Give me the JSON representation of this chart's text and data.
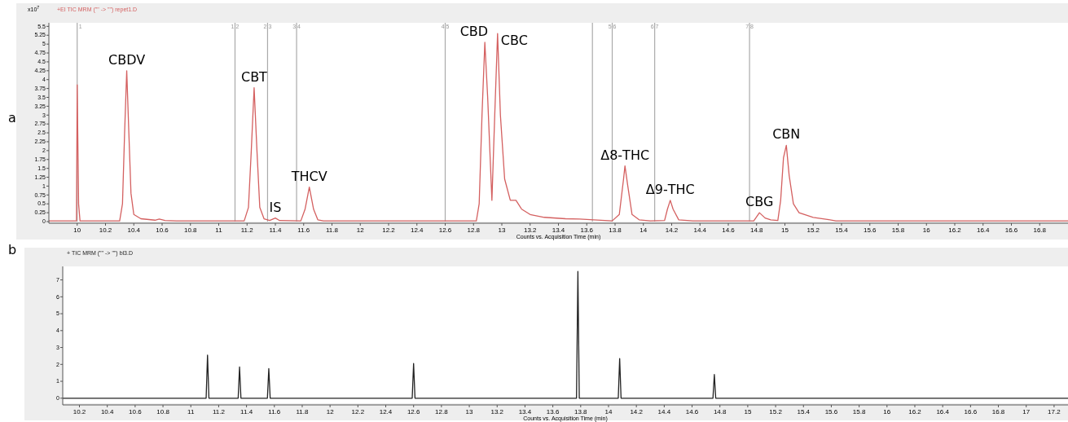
{
  "chart_data": [
    {
      "type": "line",
      "title": "+EI TIC MRM (\"\" -> \"\") repet1.D",
      "ylabel": "x10$^{7}$",
      "xlabel": "Counts vs. Acquisition Time (min)",
      "xlim": [
        9.8,
        17.0
      ],
      "xticks": [
        10,
        10.2,
        10.4,
        10.6,
        10.8,
        11,
        11.2,
        11.4,
        11.6,
        11.8,
        12,
        12.2,
        12.4,
        12.6,
        12.8,
        13,
        13.2,
        13.4,
        13.6,
        13.8,
        14,
        14.2,
        14.4,
        14.6,
        14.8,
        15,
        15.2,
        15.4,
        15.6,
        15.8,
        16,
        16.2,
        16.4,
        16.6,
        16.8
      ],
      "ylim": [
        0,
        5.6
      ],
      "yticks": [
        0,
        0.25,
        0.5,
        0.75,
        1,
        1.25,
        1.5,
        1.75,
        2,
        2.25,
        2.5,
        2.75,
        3,
        3.25,
        3.5,
        3.75,
        4,
        4.25,
        4.5,
        4.75,
        5,
        5.25,
        5.5
      ],
      "grid": false,
      "series": [
        {
          "color": "#d46060",
          "x": [
            9.8,
            9.995,
            10.0,
            10.01,
            10.02,
            10.3,
            10.32,
            10.335,
            10.35,
            10.365,
            10.38,
            10.4,
            10.45,
            10.55,
            10.58,
            10.62,
            10.7,
            11.18,
            11.21,
            11.23,
            11.25,
            11.27,
            11.29,
            11.32,
            11.36,
            11.4,
            11.43,
            11.58,
            11.61,
            11.64,
            11.67,
            11.7,
            11.74,
            12.82,
            12.84,
            12.86,
            12.88,
            12.9,
            12.93,
            12.95,
            12.97,
            12.99,
            13.02,
            13.06,
            13.1,
            13.14,
            13.2,
            13.3,
            13.45,
            13.55,
            13.65,
            13.78,
            13.83,
            13.86,
            13.87,
            13.89,
            13.92,
            13.97,
            14.05,
            14.15,
            14.17,
            14.19,
            14.21,
            14.25,
            14.35,
            14.78,
            14.82,
            14.86,
            14.9,
            14.95,
            14.97,
            14.99,
            15.01,
            15.03,
            15.06,
            15.1,
            15.2,
            15.3,
            15.36,
            17.0
          ],
          "values": [
            0.02,
            0.02,
            3.85,
            0.5,
            0.02,
            0.02,
            0.5,
            2.5,
            4.25,
            2.5,
            0.8,
            0.2,
            0.08,
            0.04,
            0.07,
            0.03,
            0.02,
            0.02,
            0.4,
            2.0,
            3.77,
            2.0,
            0.4,
            0.08,
            0.03,
            0.1,
            0.03,
            0.02,
            0.35,
            0.97,
            0.35,
            0.05,
            0.02,
            0.02,
            0.5,
            3.0,
            5.05,
            3.5,
            0.6,
            3.0,
            5.3,
            3.0,
            1.2,
            0.6,
            0.6,
            0.35,
            0.2,
            0.12,
            0.08,
            0.07,
            0.05,
            0.02,
            0.2,
            1.2,
            1.57,
            1.0,
            0.2,
            0.05,
            0.02,
            0.03,
            0.35,
            0.6,
            0.35,
            0.05,
            0.02,
            0.02,
            0.25,
            0.1,
            0.05,
            0.03,
            0.6,
            1.8,
            2.15,
            1.3,
            0.5,
            0.25,
            0.12,
            0.06,
            0.02,
            0.02
          ]
        }
      ],
      "ref_lines": [
        {
          "axis": "x",
          "value": 10.0,
          "color": "#aaaaaa"
        },
        {
          "axis": "x",
          "value": 11.115,
          "color": "#aaaaaa"
        },
        {
          "axis": "x",
          "value": 11.345,
          "color": "#aaaaaa"
        },
        {
          "axis": "x",
          "value": 11.55,
          "color": "#aaaaaa"
        },
        {
          "axis": "x",
          "value": 12.6,
          "color": "#aaaaaa"
        },
        {
          "axis": "x",
          "value": 13.64,
          "color": "#aaaaaa"
        },
        {
          "axis": "x",
          "value": 13.78,
          "color": "#aaaaaa"
        },
        {
          "axis": "x",
          "value": 14.08,
          "color": "#aaaaaa"
        },
        {
          "axis": "x",
          "value": 14.75,
          "color": "#aaaaaa"
        }
      ],
      "annotations": [
        "a",
        {
          "text": "1",
          "x": 10.0,
          "y": 5.5
        },
        {
          "text": "1 2",
          "x": 11.115,
          "y": 5.5
        },
        {
          "text": "2 3",
          "x": 11.345,
          "y": 5.5
        },
        {
          "text": "3 4",
          "x": 11.55,
          "y": 5.5
        },
        {
          "text": "4 5",
          "x": 12.6,
          "y": 5.5
        },
        {
          "text": "5 6",
          "x": 13.78,
          "y": 5.5
        },
        {
          "text": "6 7",
          "x": 14.08,
          "y": 5.5
        },
        {
          "text": "7 8",
          "x": 14.75,
          "y": 5.5
        },
        {
          "text": "CBDV",
          "x": 10.35,
          "y": 4.25
        },
        {
          "text": "CBT",
          "x": 11.25,
          "y": 3.77
        },
        {
          "text": "IS",
          "x": 11.4,
          "y": 0.1
        },
        {
          "text": "THCV",
          "x": 11.64,
          "y": 0.97
        },
        {
          "text": "CBD",
          "x": 12.88,
          "y": 5.05
        },
        {
          "text": "CBC",
          "x": 12.97,
          "y": 5.3
        },
        {
          "text": "Δ8-THC",
          "x": 13.87,
          "y": 1.57
        },
        {
          "text": "Δ9-THC",
          "x": 14.19,
          "y": 0.6
        },
        {
          "text": "CBG",
          "x": 14.82,
          "y": 0.25
        },
        {
          "text": "CBN",
          "x": 15.01,
          "y": 2.15
        }
      ]
    },
    {
      "type": "line",
      "title": "+ TIC MRM (\"\" -> \"\") bl3.D",
      "xlabel": "Counts vs. Acquisition Time (min)",
      "xlim": [
        10.08,
        17.3
      ],
      "xticks": [
        10.2,
        10.4,
        10.6,
        10.8,
        11,
        11.2,
        11.4,
        11.6,
        11.8,
        12,
        12.2,
        12.4,
        12.6,
        12.8,
        13,
        13.2,
        13.4,
        13.6,
        13.8,
        14,
        14.2,
        14.4,
        14.6,
        14.8,
        15,
        15.2,
        15.4,
        15.6,
        15.8,
        16,
        16.2,
        16.4,
        16.6,
        16.8,
        17,
        17.2
      ],
      "ylim": [
        -0.3,
        7.8
      ],
      "yticks": [
        0,
        1,
        2,
        3,
        4,
        5,
        6,
        7
      ],
      "grid": false,
      "series": [
        {
          "color": "#222222",
          "x": [
            10.08,
            11.11,
            11.12,
            11.13,
            11.34,
            11.35,
            11.36,
            11.55,
            11.56,
            11.57,
            12.59,
            12.6,
            12.61,
            13.77,
            13.78,
            13.79,
            14.07,
            14.08,
            14.09,
            14.75,
            14.76,
            14.77,
            17.3
          ],
          "values": [
            0,
            0,
            2.55,
            0,
            0,
            1.85,
            0,
            0,
            1.75,
            0,
            0,
            2.05,
            0,
            0,
            7.5,
            0,
            0,
            2.35,
            0,
            0,
            1.4,
            0,
            0
          ]
        }
      ],
      "annotations": [
        "b"
      ]
    }
  ]
}
